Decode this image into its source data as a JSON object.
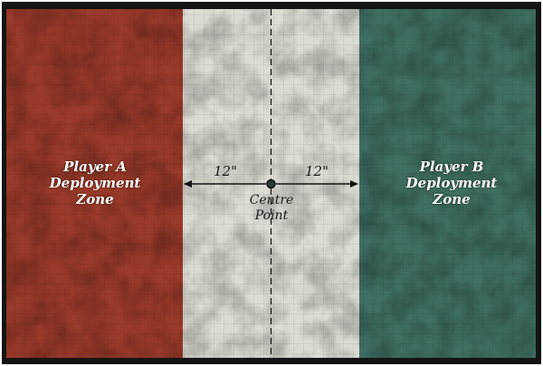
{
  "colors": {
    "player_a": "#9a3a2a",
    "neutral": "#dcdcd4",
    "player_b": "#3f6e63",
    "border": "#111111"
  },
  "zones": [
    {
      "id": "player_a",
      "lines": [
        "Player A",
        "Deployment",
        "Zone"
      ]
    },
    {
      "id": "player_b",
      "lines": [
        "Player B",
        "Deployment",
        "Zone"
      ]
    }
  ],
  "measurements": {
    "left": "12\"",
    "right": "12\""
  },
  "centre": {
    "lines": [
      "Centre",
      "Point"
    ]
  }
}
